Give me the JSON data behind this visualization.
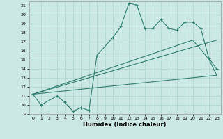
{
  "xlabel": "Humidex (Indice chaleur)",
  "bg_color": "#cce8e4",
  "grid_color": "#aad4d0",
  "line_color": "#2e7d6e",
  "xlim": [
    -0.5,
    23.5
  ],
  "ylim": [
    9,
    21.5
  ],
  "yticks": [
    9,
    10,
    11,
    12,
    13,
    14,
    15,
    16,
    17,
    18,
    19,
    20,
    21
  ],
  "xticks": [
    0,
    1,
    2,
    3,
    4,
    5,
    6,
    7,
    8,
    9,
    10,
    11,
    12,
    13,
    14,
    15,
    16,
    17,
    18,
    19,
    20,
    21,
    22,
    23
  ],
  "curve1_x": [
    0,
    1,
    3,
    4,
    5,
    6,
    7,
    8,
    10,
    11,
    12,
    13,
    14,
    15,
    16,
    17,
    18,
    19,
    20,
    21,
    22,
    23
  ],
  "curve1_y": [
    11.2,
    10.0,
    11.0,
    10.3,
    9.3,
    9.7,
    9.4,
    15.5,
    17.5,
    18.7,
    21.3,
    21.1,
    18.5,
    18.5,
    19.5,
    18.5,
    18.3,
    19.2,
    19.2,
    18.5,
    15.2,
    14.0
  ],
  "curve2_x": [
    0,
    23
  ],
  "curve2_y": [
    11.2,
    13.3
  ],
  "curve3_x": [
    0,
    23
  ],
  "curve3_y": [
    11.2,
    17.2
  ],
  "curve4_x": [
    0,
    20,
    22,
    23
  ],
  "curve4_y": [
    11.2,
    17.2,
    15.1,
    13.3
  ]
}
